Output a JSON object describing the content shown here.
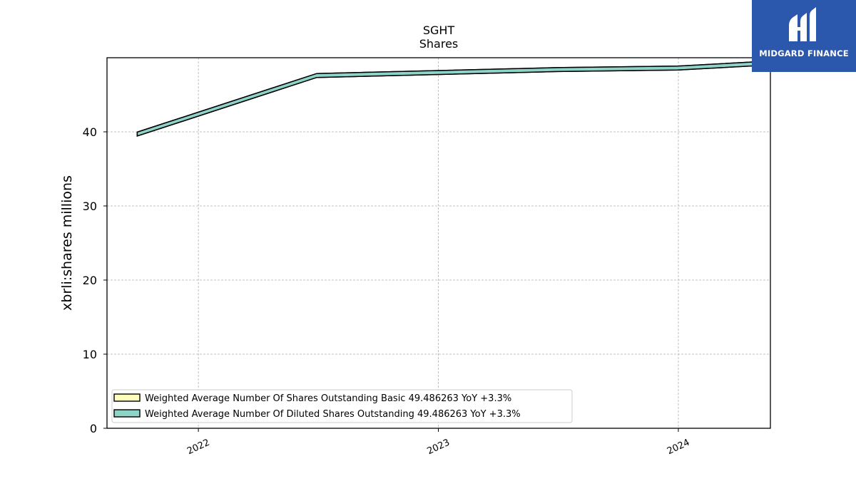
{
  "brand": {
    "name": "MIDGARD FINANCE",
    "bg_color": "#2b58ad"
  },
  "chart_data": {
    "type": "line",
    "title": "SGHT",
    "subtitle": "Shares",
    "xlabel": "",
    "ylabel": "xbrli:shares millions",
    "xlim": [
      "2021-08-15",
      "2024-05-20"
    ],
    "ylim": [
      0,
      50
    ],
    "yticks": [
      0,
      10,
      20,
      30,
      40
    ],
    "xticks": [
      {
        "date": "2022-01-01",
        "label": "2022"
      },
      {
        "date": "2023-01-01",
        "label": "2023"
      },
      {
        "date": "2024-01-01",
        "label": "2024"
      }
    ],
    "grid": true,
    "legend_position": "lower-left",
    "series": [
      {
        "name": "Weighted Average Number Of Shares Outstanding Basic",
        "legend_suffix": "49.486263 YoY +3.3%",
        "color": "#ffffbb",
        "x": [
          "2021-09-30",
          "2022-06-30",
          "2023-06-30",
          "2023-12-31",
          "2024-06-30"
        ],
        "y": [
          39.7,
          47.6,
          48.4,
          48.6,
          49.49
        ]
      },
      {
        "name": "Weighted Average Number Of Diluted Shares Outstanding",
        "legend_suffix": "49.486263 YoY +3.3%",
        "color": "#8dd3c7",
        "x": [
          "2021-09-30",
          "2022-06-30",
          "2023-06-30",
          "2023-12-31",
          "2024-06-30"
        ],
        "y": [
          39.7,
          47.6,
          48.4,
          48.6,
          49.49
        ]
      }
    ]
  }
}
